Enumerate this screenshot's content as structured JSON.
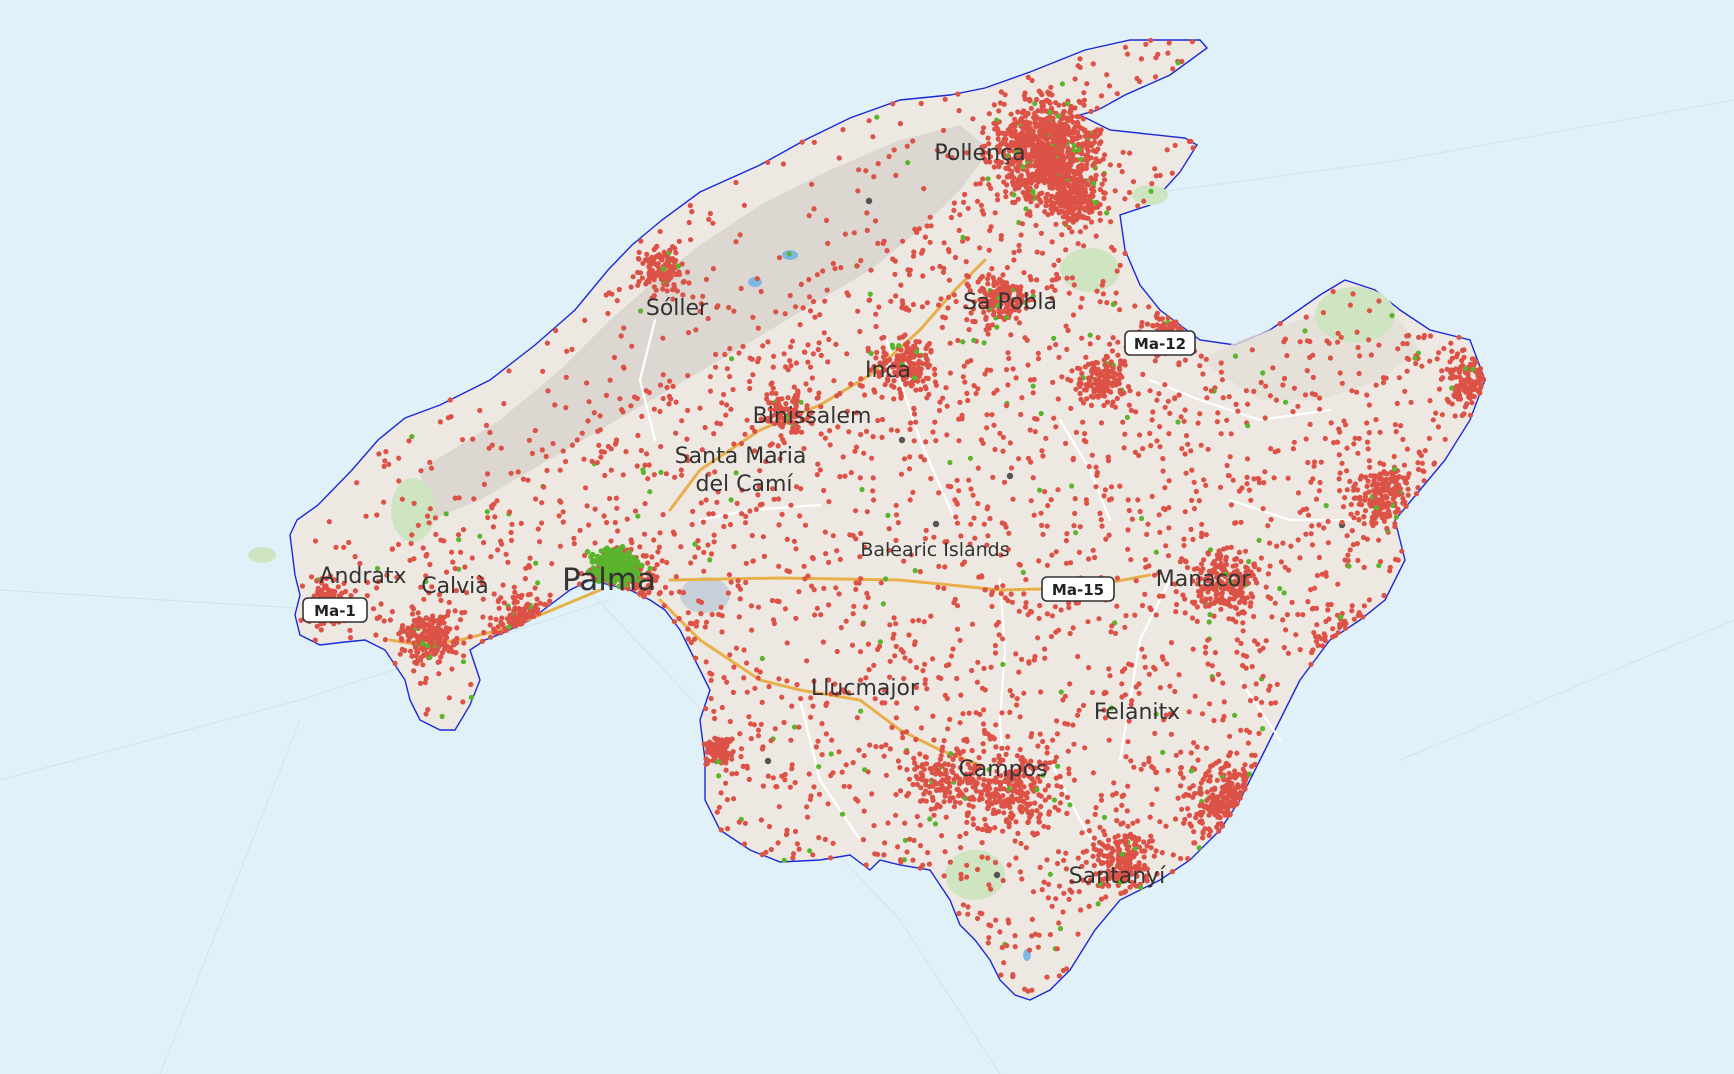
{
  "map": {
    "region_label": "Balearic Islands",
    "colors": {
      "sea": "#e1f1f9",
      "land": "#eee8e2",
      "coastline": "#1a2ad6",
      "mountains": "#d8d4cc",
      "parks": "#cfe5c2",
      "roads_major": "#e8b04a",
      "roads_minor": "#ffffff",
      "dot_primary": "#dd5246",
      "dot_secondary": "#5ab52c",
      "reservoir": "#7cb8e6"
    },
    "places": [
      {
        "id": "palma",
        "name": "Palma",
        "size": "large"
      },
      {
        "id": "pollenca",
        "name": "Pollença",
        "size": "medium"
      },
      {
        "id": "soller",
        "name": "Sóller",
        "size": "medium"
      },
      {
        "id": "sa-pobla",
        "name": "Sa Pobla",
        "size": "medium"
      },
      {
        "id": "inca",
        "name": "Inca",
        "size": "medium"
      },
      {
        "id": "binissalem",
        "name": "Binissalem",
        "size": "medium"
      },
      {
        "id": "santa-maria",
        "name": "Santa Maria del Camí",
        "size": "medium"
      },
      {
        "id": "andratx",
        "name": "Andratx",
        "size": "medium"
      },
      {
        "id": "calvia",
        "name": "Calvià",
        "size": "medium"
      },
      {
        "id": "manacor",
        "name": "Manacor",
        "size": "medium"
      },
      {
        "id": "llucmajor",
        "name": "Llucmajor",
        "size": "medium"
      },
      {
        "id": "felanitx",
        "name": "Felanitx",
        "size": "medium"
      },
      {
        "id": "campos",
        "name": "Campos",
        "size": "medium"
      },
      {
        "id": "santanyi",
        "name": "Santanyí",
        "size": "medium"
      }
    ],
    "road_shields": [
      {
        "id": "ma-12",
        "label": "Ma-12"
      },
      {
        "id": "ma-15",
        "label": "Ma-15"
      },
      {
        "id": "ma-1",
        "label": "Ma-1"
      }
    ]
  }
}
